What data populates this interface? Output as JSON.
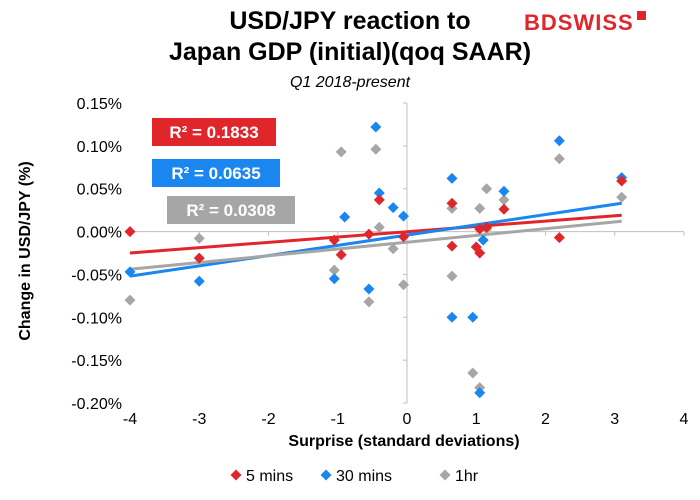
{
  "header": {
    "title_line1": "USD/JPY reaction to",
    "title_line2": "Japan GDP (initial)(qoq SAAR)",
    "subtitle": "Q1 2018-present",
    "logo": "BDSWISS"
  },
  "chart_data": {
    "type": "scatter",
    "title": "USD/JPY reaction to Japan GDP (initial)(qoq SAAR)",
    "subtitle": "Q1 2018-present",
    "xlabel": "Surprise (standard deviations)",
    "ylabel": "Change in USD/JPY (%)",
    "xlim": [
      -4,
      4
    ],
    "ylim": [
      -0.2,
      0.15
    ],
    "x_ticks": [
      "-4",
      "-3",
      "-2",
      "-1",
      "0",
      "1",
      "2",
      "3",
      "4"
    ],
    "y_ticks": [
      "-0.20%",
      "-0.15%",
      "-0.10%",
      "-0.05%",
      "0.00%",
      "0.05%",
      "0.10%",
      "0.15%"
    ],
    "grid": false,
    "legend_position": "bottom",
    "series": [
      {
        "name": "5 mins",
        "color": "#e0262b",
        "r2_label": "R² = 0.1833",
        "trend": [
          [
            -4,
            -0.025
          ],
          [
            3.1,
            0.019
          ]
        ],
        "points": [
          [
            -4,
            0.0
          ],
          [
            -3,
            -0.031
          ],
          [
            -1.05,
            -0.01
          ],
          [
            -0.95,
            -0.027
          ],
          [
            -0.55,
            -0.003
          ],
          [
            -0.4,
            0.037
          ],
          [
            -0.05,
            -0.006
          ],
          [
            0.65,
            0.033
          ],
          [
            0.65,
            -0.017
          ],
          [
            1.0,
            -0.018
          ],
          [
            1.05,
            0.003
          ],
          [
            1.05,
            -0.025
          ],
          [
            1.15,
            0.005
          ],
          [
            1.4,
            0.026
          ],
          [
            2.2,
            -0.007
          ],
          [
            3.1,
            0.059
          ]
        ]
      },
      {
        "name": "30 mins",
        "color": "#1a86f0",
        "r2_label": "R² = 0.0635",
        "trend": [
          [
            -4,
            -0.052
          ],
          [
            3.1,
            0.033
          ]
        ],
        "points": [
          [
            -4,
            -0.047
          ],
          [
            -3,
            -0.058
          ],
          [
            -1.05,
            -0.055
          ],
          [
            -0.9,
            0.017
          ],
          [
            -0.55,
            -0.067
          ],
          [
            -0.45,
            0.122
          ],
          [
            -0.4,
            0.045
          ],
          [
            -0.2,
            0.028
          ],
          [
            -0.05,
            0.018
          ],
          [
            0.65,
            0.062
          ],
          [
            0.65,
            -0.1
          ],
          [
            0.95,
            -0.1
          ],
          [
            1.05,
            -0.188
          ],
          [
            1.1,
            -0.01
          ],
          [
            1.4,
            0.047
          ],
          [
            2.2,
            0.106
          ],
          [
            3.1,
            0.063
          ]
        ]
      },
      {
        "name": "1hr",
        "color": "#a6a6a6",
        "r2_label": "R² = 0.0308",
        "trend": [
          [
            -4,
            -0.044
          ],
          [
            3.1,
            0.012
          ]
        ],
        "points": [
          [
            -4,
            -0.08
          ],
          [
            -3,
            -0.008
          ],
          [
            -1.05,
            -0.045
          ],
          [
            -0.95,
            0.093
          ],
          [
            -0.55,
            -0.082
          ],
          [
            -0.45,
            0.096
          ],
          [
            -0.4,
            0.005
          ],
          [
            -0.2,
            -0.02
          ],
          [
            -0.05,
            -0.062
          ],
          [
            0.65,
            0.027
          ],
          [
            0.65,
            -0.052
          ],
          [
            0.95,
            -0.165
          ],
          [
            1.05,
            -0.182
          ],
          [
            1.05,
            0.027
          ],
          [
            1.15,
            0.05
          ],
          [
            1.15,
            0.003
          ],
          [
            1.4,
            0.037
          ],
          [
            2.2,
            0.085
          ],
          [
            3.1,
            0.04
          ]
        ]
      }
    ]
  }
}
